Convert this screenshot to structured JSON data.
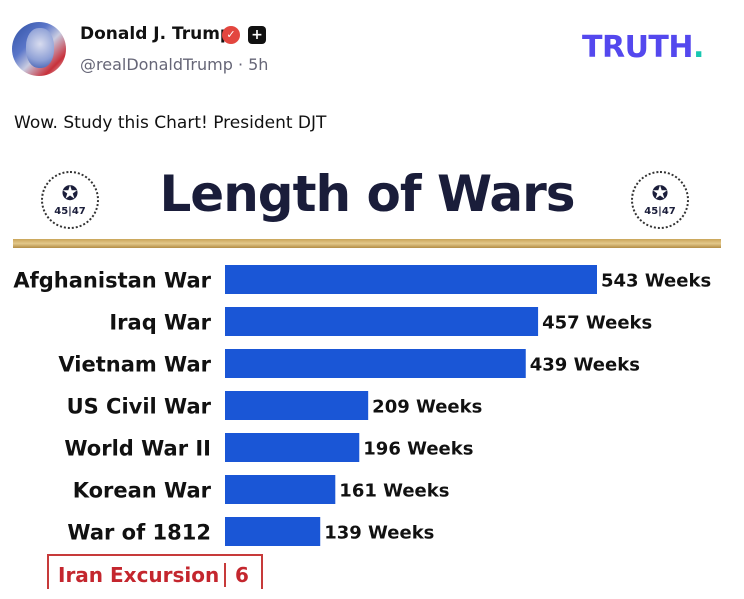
{
  "header": {
    "display_name": "Donald J. Trump",
    "handle": "@realDonaldTrump",
    "separator": " · ",
    "time": "5h",
    "brand": "TRUTH",
    "brand_dot": "."
  },
  "post": {
    "text": "Wow. Study this Chart! President DJT"
  },
  "icons": {
    "verified": "verified-badge-icon",
    "plus": "plus-badge-icon",
    "seal": "presidential-seal-icon"
  },
  "seal_text": "45|47",
  "colors": {
    "bar": "#1a56d6",
    "title": "#1a1d3a",
    "iran_border": "#c73a3a",
    "iran_text": "#c4262e",
    "brand": "#5448ee",
    "brand_dot": "#18c7b1"
  },
  "chart_data": {
    "type": "bar",
    "orientation": "horizontal",
    "title": "Length of Wars",
    "unit": "Weeks",
    "categories": [
      "Afghanistan War",
      "Iraq War",
      "Vietnam War",
      "US Civil War",
      "World War II",
      "Korean War",
      "War of 1812"
    ],
    "values": [
      543,
      457,
      439,
      209,
      196,
      161,
      139
    ],
    "value_labels": [
      "543 Weeks",
      "457 Weeks",
      "439 Weeks",
      "209 Weeks",
      "196 Weeks",
      "161 Weeks",
      "139 Weeks"
    ],
    "highlight": {
      "category": "Iran Excursion",
      "value": 6,
      "value_label": "6"
    },
    "grid": false,
    "legend": "none"
  }
}
